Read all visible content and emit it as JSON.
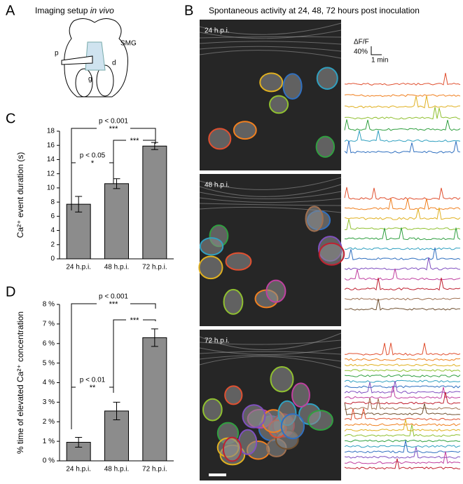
{
  "panels": {
    "a": {
      "letter": "A",
      "title": "Imaging setup",
      "title_italic": "in vivo",
      "labels": [
        "p",
        "SMG",
        "d",
        "g"
      ]
    },
    "b": {
      "letter": "B",
      "title": "Spontaneous activity at 24, 48, 72 hours post inoculation",
      "images": [
        "24 h.p.i.",
        "48 h.p.i.",
        "72 h.p.i."
      ],
      "scale": [
        "ΔF/F",
        "40%",
        "1 min"
      ]
    },
    "c": {
      "letter": "C"
    },
    "d": {
      "letter": "D"
    }
  },
  "chart_data": [
    {
      "type": "bar",
      "ylabel": "Ca²⁺ event duration (s)",
      "categories": [
        "24 h.p.i.",
        "48 h.p.i.",
        "72 h.p.i."
      ],
      "values": [
        7.7,
        10.6,
        15.9
      ],
      "errors": [
        1.1,
        0.7,
        0.5
      ],
      "color": "#8c8c8c",
      "ylim": [
        0,
        18
      ],
      "yticks": [
        0,
        2,
        4,
        6,
        8,
        10,
        12,
        14,
        16,
        18
      ],
      "annotations": [
        "p < 0.001",
        "***",
        "p < 0.05",
        "*",
        "***"
      ]
    },
    {
      "type": "bar",
      "ylabel": "% time of elevated Ca²⁺ concentration",
      "categories": [
        "24 h.p.i.",
        "48 h.p.i.",
        "72 h.p.i."
      ],
      "values": [
        0.95,
        2.55,
        6.3
      ],
      "errors": [
        0.25,
        0.45,
        0.45
      ],
      "color": "#8c8c8c",
      "ylim": [
        0,
        8
      ],
      "yticks": [
        {
          "value": 0,
          "label": "0 %"
        },
        {
          "value": 1,
          "label": "1 %"
        },
        {
          "value": 2,
          "label": "2 %"
        },
        {
          "value": 3,
          "label": "3 %"
        },
        {
          "value": 4,
          "label": "4 %"
        },
        {
          "value": 5,
          "label": "5 %"
        },
        {
          "value": 6,
          "label": "6 %"
        },
        {
          "value": 7,
          "label": "7 %"
        },
        {
          "value": 8,
          "label": "8 %"
        }
      ],
      "annotations": [
        "p < 0.001",
        "***",
        "p < 0.01",
        "**",
        "***"
      ]
    }
  ]
}
